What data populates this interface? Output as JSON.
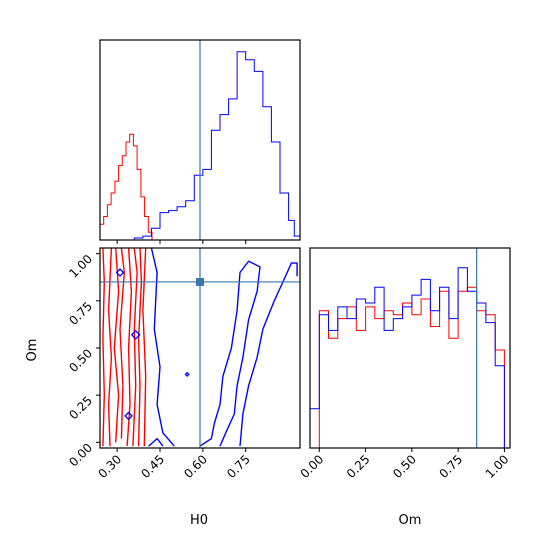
{
  "colors": {
    "red": "#ff0000",
    "blue": "#0000ff",
    "truth": "#3a78a8",
    "frame": "#000000"
  },
  "chart_data": [
    {
      "type": "histogram",
      "panel": "H0 marginal",
      "x_range": [
        0.24,
        0.94
      ],
      "y_ticks_shown": false,
      "truth": 0.59,
      "series": [
        {
          "name": "",
          "color": "#ff0000",
          "bin_edges": [
            0.24,
            0.253,
            0.266,
            0.279,
            0.292,
            0.305,
            0.318,
            0.331,
            0.344,
            0.357,
            0.37,
            0.383,
            0.396,
            0.409,
            0.422
          ],
          "counts": [
            0.08,
            0.12,
            0.18,
            0.24,
            0.3,
            0.38,
            0.43,
            0.5,
            0.54,
            0.48,
            0.36,
            0.22,
            0.12,
            0.04
          ]
        },
        {
          "name": "",
          "color": "#0000ff",
          "bin_edges": [
            0.24,
            0.27,
            0.3,
            0.33,
            0.36,
            0.39,
            0.42,
            0.45,
            0.48,
            0.51,
            0.54,
            0.57,
            0.6,
            0.63,
            0.66,
            0.69,
            0.72,
            0.75,
            0.78,
            0.81,
            0.84,
            0.87,
            0.9,
            0.92,
            0.94
          ],
          "counts": [
            0,
            0,
            0,
            0,
            0.01,
            0.02,
            0.06,
            0.14,
            0.15,
            0.17,
            0.2,
            0.33,
            0.36,
            0.56,
            0.64,
            0.72,
            0.96,
            0.92,
            0.86,
            0.68,
            0.5,
            0.24,
            0.1,
            0.02
          ]
        }
      ]
    },
    {
      "type": "contour",
      "panel": "H0 vs Om",
      "xlabel": "H0",
      "ylabel": "Om",
      "x_range": [
        0.24,
        0.94
      ],
      "y_range": [
        -0.03,
        1.03
      ],
      "x_ticks": [
        "0.30",
        "0.45",
        "0.60",
        "0.75"
      ],
      "x_tick_values": [
        0.3,
        0.45,
        0.6,
        0.75
      ],
      "y_ticks": [
        "0.00",
        "0.25",
        "0.50",
        "0.75",
        "1.00"
      ],
      "y_tick_values": [
        0.0,
        0.25,
        0.5,
        0.75,
        1.0
      ],
      "truth": {
        "x": 0.59,
        "y": 0.85
      },
      "red_contours": [
        [
          [
            0.25,
            -0.02
          ],
          [
            0.255,
            0.25
          ],
          [
            0.25,
            0.55
          ],
          [
            0.255,
            0.85
          ],
          [
            0.25,
            1.03
          ]
        ],
        [
          [
            0.275,
            -0.02
          ],
          [
            0.27,
            0.2
          ],
          [
            0.28,
            0.45
          ],
          [
            0.27,
            0.7
          ],
          [
            0.28,
            1.03
          ]
        ],
        [
          [
            0.295,
            0.0
          ],
          [
            0.305,
            0.25
          ],
          [
            0.29,
            0.5
          ],
          [
            0.305,
            0.8
          ],
          [
            0.295,
            1.03
          ]
        ],
        [
          [
            0.315,
            0.02
          ],
          [
            0.32,
            0.3
          ],
          [
            0.31,
            0.6
          ],
          [
            0.325,
            0.9
          ],
          [
            0.315,
            1.03
          ]
        ],
        [
          [
            0.335,
            -0.02
          ],
          [
            0.345,
            0.2
          ],
          [
            0.34,
            0.5
          ],
          [
            0.35,
            0.8
          ],
          [
            0.34,
            1.03
          ]
        ],
        [
          [
            0.355,
            -0.02
          ],
          [
            0.365,
            0.3
          ],
          [
            0.36,
            0.6
          ],
          [
            0.37,
            0.9
          ],
          [
            0.36,
            1.03
          ]
        ],
        [
          [
            0.375,
            -0.02
          ],
          [
            0.38,
            0.3
          ],
          [
            0.375,
            0.55
          ],
          [
            0.385,
            0.85
          ],
          [
            0.38,
            1.03
          ]
        ],
        [
          [
            0.395,
            -0.02
          ],
          [
            0.4,
            0.35
          ],
          [
            0.39,
            0.7
          ],
          [
            0.4,
            1.03
          ]
        ]
      ],
      "blue_contours": [
        [
          [
            0.41,
            -0.02
          ],
          [
            0.44,
            0.02
          ],
          [
            0.46,
            -0.02
          ]
        ],
        [
          [
            0.42,
            1.03
          ],
          [
            0.44,
            0.9
          ],
          [
            0.43,
            0.6
          ],
          [
            0.45,
            0.4
          ],
          [
            0.44,
            0.2
          ],
          [
            0.46,
            0.05
          ],
          [
            0.5,
            -0.02
          ]
        ],
        [
          [
            0.59,
            -0.02
          ],
          [
            0.63,
            0.02
          ],
          [
            0.64,
            0.1
          ],
          [
            0.66,
            0.2
          ],
          [
            0.67,
            0.35
          ],
          [
            0.7,
            0.5
          ],
          [
            0.72,
            0.7
          ],
          [
            0.73,
            0.9
          ],
          [
            0.76,
            0.96
          ],
          [
            0.8,
            0.93
          ],
          [
            0.79,
            0.8
          ],
          [
            0.76,
            0.65
          ],
          [
            0.74,
            0.45
          ],
          [
            0.72,
            0.3
          ],
          [
            0.71,
            0.15
          ],
          [
            0.68,
            0.05
          ],
          [
            0.66,
            -0.02
          ]
        ],
        [
          [
            0.73,
            -0.02
          ],
          [
            0.74,
            0.15
          ],
          [
            0.76,
            0.3
          ],
          [
            0.79,
            0.45
          ],
          [
            0.81,
            0.6
          ],
          [
            0.85,
            0.75
          ],
          [
            0.88,
            0.85
          ],
          [
            0.91,
            0.95
          ],
          [
            0.93,
            0.95
          ],
          [
            0.93,
            0.88
          ]
        ]
      ],
      "blue_islands": [
        {
          "x": 0.31,
          "y": 0.9,
          "r": 0.012
        },
        {
          "x": 0.365,
          "y": 0.57,
          "r": 0.014
        },
        {
          "x": 0.34,
          "y": 0.14,
          "r": 0.012
        },
        {
          "x": 0.545,
          "y": 0.36,
          "r": 0.006
        }
      ]
    },
    {
      "type": "histogram",
      "panel": "Om marginal",
      "xlabel": "Om",
      "x_range": [
        -0.05,
        1.03
      ],
      "x_ticks": [
        "0.00",
        "0.25",
        "0.50",
        "0.75",
        "1.00"
      ],
      "x_tick_values": [
        0.0,
        0.25,
        0.5,
        0.75,
        1.0
      ],
      "y_ticks_shown": false,
      "truth": 0.85,
      "series": [
        {
          "name": "",
          "color": "#ff0000",
          "bin_edges": [
            0.0,
            0.05,
            0.1,
            0.15,
            0.2,
            0.25,
            0.3,
            0.35,
            0.4,
            0.45,
            0.5,
            0.55,
            0.6,
            0.65,
            0.7,
            0.75,
            0.8,
            0.85,
            0.9,
            0.95,
            1.0
          ],
          "counts": [
            0.7,
            0.56,
            0.66,
            0.72,
            0.6,
            0.72,
            0.66,
            0.7,
            0.68,
            0.74,
            0.68,
            0.76,
            0.62,
            0.8,
            0.56,
            0.8,
            0.82,
            0.7,
            0.68,
            0.5
          ]
        },
        {
          "name": "",
          "color": "#0000ff",
          "bin_edges": [
            -0.05,
            0.0,
            0.05,
            0.1,
            0.15,
            0.2,
            0.25,
            0.3,
            0.35,
            0.4,
            0.45,
            0.5,
            0.55,
            0.6,
            0.65,
            0.7,
            0.75,
            0.8,
            0.85,
            0.9,
            0.95,
            1.0
          ],
          "counts": [
            0.2,
            0.68,
            0.6,
            0.72,
            0.66,
            0.76,
            0.74,
            0.82,
            0.6,
            0.66,
            0.72,
            0.78,
            0.86,
            0.7,
            0.82,
            0.66,
            0.92,
            0.8,
            0.74,
            0.64,
            0.42
          ]
        }
      ]
    }
  ]
}
